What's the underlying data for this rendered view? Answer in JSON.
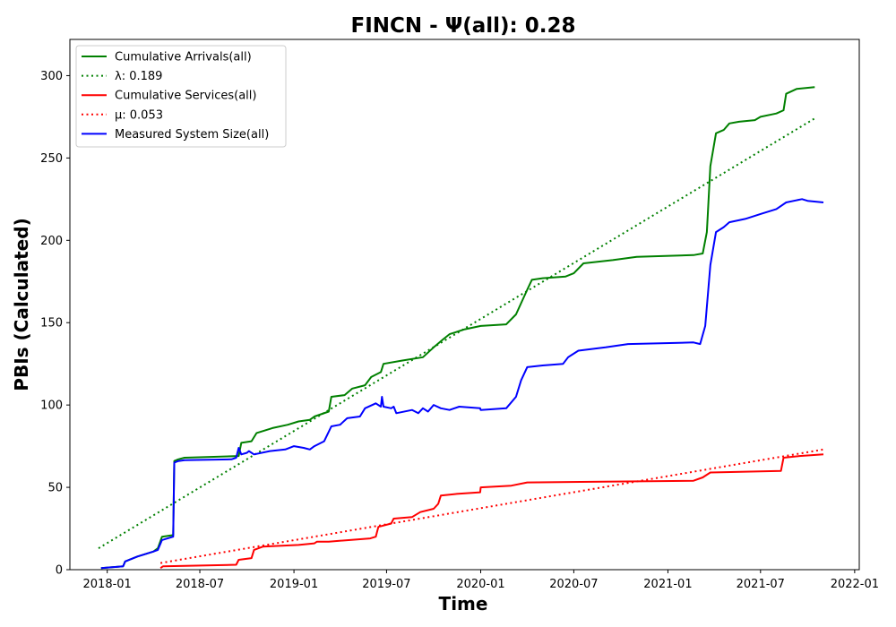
{
  "chart_data": {
    "type": "line",
    "title": "FINCN -  Ψ(all): 0.28",
    "xlabel": "Time",
    "ylabel": "PBIs (Calculated)",
    "x_type": "date",
    "xlim": [
      "2017-10-20",
      "2022-01-10"
    ],
    "ylim": [
      0,
      322
    ],
    "x_ticks": [
      "2018-01",
      "2018-07",
      "2019-01",
      "2019-07",
      "2020-01",
      "2020-07",
      "2021-01",
      "2021-07",
      "2022-01"
    ],
    "y_ticks": [
      0,
      50,
      100,
      150,
      200,
      250,
      300
    ],
    "grid": false,
    "legend_position": "upper left",
    "series": [
      {
        "name": "Cumulative Arrivals(all)",
        "style": "solid",
        "color": "#008000",
        "points": [
          [
            "2017-12-20",
            1
          ],
          [
            "2018-02-01",
            2
          ],
          [
            "2018-02-05",
            5
          ],
          [
            "2018-03-01",
            8
          ],
          [
            "2018-04-01",
            11
          ],
          [
            "2018-04-10",
            13
          ],
          [
            "2018-04-18",
            20
          ],
          [
            "2018-05-10",
            21
          ],
          [
            "2018-05-12",
            66
          ],
          [
            "2018-05-20",
            67
          ],
          [
            "2018-06-01",
            68
          ],
          [
            "2018-09-15",
            69
          ],
          [
            "2018-09-20",
            77
          ],
          [
            "2018-10-10",
            78
          ],
          [
            "2018-10-20",
            83
          ],
          [
            "2018-11-20",
            86
          ],
          [
            "2018-12-20",
            88
          ],
          [
            "2019-01-10",
            90
          ],
          [
            "2019-02-01",
            91
          ],
          [
            "2019-02-10",
            93
          ],
          [
            "2019-03-10",
            96
          ],
          [
            "2019-03-15",
            105
          ],
          [
            "2019-04-10",
            106
          ],
          [
            "2019-04-25",
            110
          ],
          [
            "2019-05-20",
            112
          ],
          [
            "2019-06-01",
            117
          ],
          [
            "2019-06-20",
            120
          ],
          [
            "2019-06-25",
            125
          ],
          [
            "2019-08-01",
            127
          ],
          [
            "2019-09-10",
            129
          ],
          [
            "2019-10-01",
            135
          ],
          [
            "2019-10-20",
            140
          ],
          [
            "2019-11-01",
            143
          ],
          [
            "2019-12-01",
            146
          ],
          [
            "2020-01-01",
            148
          ],
          [
            "2020-02-20",
            149
          ],
          [
            "2020-03-10",
            155
          ],
          [
            "2020-04-01",
            170
          ],
          [
            "2020-04-10",
            176
          ],
          [
            "2020-05-01",
            177
          ],
          [
            "2020-06-15",
            178
          ],
          [
            "2020-07-01",
            180
          ],
          [
            "2020-07-20",
            186
          ],
          [
            "2020-09-15",
            188
          ],
          [
            "2020-11-01",
            190
          ],
          [
            "2021-02-20",
            191
          ],
          [
            "2021-03-10",
            192
          ],
          [
            "2021-03-18",
            205
          ],
          [
            "2021-03-25",
            245
          ],
          [
            "2021-04-05",
            265
          ],
          [
            "2021-04-20",
            267
          ],
          [
            "2021-05-01",
            271
          ],
          [
            "2021-05-20",
            272
          ],
          [
            "2021-06-20",
            273
          ],
          [
            "2021-07-01",
            275
          ],
          [
            "2021-08-01",
            277
          ],
          [
            "2021-08-15",
            279
          ],
          [
            "2021-08-20",
            289
          ],
          [
            "2021-09-10",
            292
          ],
          [
            "2021-10-15",
            293
          ]
        ]
      },
      {
        "name": "λ: 0.189",
        "style": "dotted",
        "color": "#008000",
        "points": [
          [
            "2017-12-15",
            13
          ],
          [
            "2021-10-15",
            274
          ]
        ]
      },
      {
        "name": "Cumulative Services(all)",
        "style": "solid",
        "color": "#ff0000",
        "points": [
          [
            "2018-04-15",
            1
          ],
          [
            "2018-04-20",
            2
          ],
          [
            "2018-09-10",
            3
          ],
          [
            "2018-09-15",
            6
          ],
          [
            "2018-10-10",
            7
          ],
          [
            "2018-10-15",
            12
          ],
          [
            "2018-11-01",
            14
          ],
          [
            "2019-01-10",
            15
          ],
          [
            "2019-02-10",
            16
          ],
          [
            "2019-02-15",
            17
          ],
          [
            "2019-03-10",
            17
          ],
          [
            "2019-05-30",
            19
          ],
          [
            "2019-06-10",
            20
          ],
          [
            "2019-06-15",
            26
          ],
          [
            "2019-07-10",
            28
          ],
          [
            "2019-07-15",
            31
          ],
          [
            "2019-08-20",
            32
          ],
          [
            "2019-09-05",
            35
          ],
          [
            "2019-10-01",
            37
          ],
          [
            "2019-10-10",
            40
          ],
          [
            "2019-10-15",
            45
          ],
          [
            "2019-11-15",
            46
          ],
          [
            "2019-12-31",
            47
          ],
          [
            "2020-01-01",
            50
          ],
          [
            "2020-03-01",
            51
          ],
          [
            "2020-04-01",
            53
          ],
          [
            "2021-02-20",
            54
          ],
          [
            "2021-03-10",
            56
          ],
          [
            "2021-03-25",
            59
          ],
          [
            "2021-08-10",
            60
          ],
          [
            "2021-08-15",
            68
          ],
          [
            "2021-09-15",
            69
          ],
          [
            "2021-11-01",
            70
          ]
        ]
      },
      {
        "name": "μ: 0.053",
        "style": "dotted",
        "color": "#ff0000",
        "points": [
          [
            "2018-04-15",
            4
          ],
          [
            "2021-11-01",
            73
          ]
        ]
      },
      {
        "name": "Measured System Size(all)",
        "style": "solid",
        "color": "#0000ff",
        "points": [
          [
            "2017-12-20",
            1
          ],
          [
            "2018-02-01",
            2
          ],
          [
            "2018-02-05",
            5
          ],
          [
            "2018-03-01",
            8
          ],
          [
            "2018-04-01",
            11
          ],
          [
            "2018-04-10",
            12
          ],
          [
            "2018-04-18",
            18
          ],
          [
            "2018-05-10",
            20
          ],
          [
            "2018-05-12",
            65
          ],
          [
            "2018-05-20",
            66
          ],
          [
            "2018-06-01",
            66.5
          ],
          [
            "2018-09-01",
            67
          ],
          [
            "2018-09-10",
            68
          ],
          [
            "2018-09-15",
            74
          ],
          [
            "2018-09-20",
            70
          ],
          [
            "2018-10-01",
            71
          ],
          [
            "2018-10-05",
            72
          ],
          [
            "2018-10-15",
            70
          ],
          [
            "2018-11-15",
            72
          ],
          [
            "2018-12-15",
            73
          ],
          [
            "2019-01-01",
            75
          ],
          [
            "2019-01-20",
            74
          ],
          [
            "2019-02-01",
            73
          ],
          [
            "2019-02-10",
            75
          ],
          [
            "2019-03-01",
            78
          ],
          [
            "2019-03-15",
            87
          ],
          [
            "2019-04-01",
            88
          ],
          [
            "2019-04-15",
            92
          ],
          [
            "2019-05-10",
            93
          ],
          [
            "2019-05-20",
            98
          ],
          [
            "2019-06-10",
            101
          ],
          [
            "2019-06-20",
            99
          ],
          [
            "2019-06-22",
            105
          ],
          [
            "2019-06-25",
            99
          ],
          [
            "2019-07-10",
            98
          ],
          [
            "2019-07-15",
            99
          ],
          [
            "2019-07-20",
            95
          ],
          [
            "2019-08-20",
            97
          ],
          [
            "2019-09-01",
            95
          ],
          [
            "2019-09-10",
            98
          ],
          [
            "2019-09-20",
            96
          ],
          [
            "2019-10-01",
            100
          ],
          [
            "2019-10-15",
            98
          ],
          [
            "2019-11-01",
            97
          ],
          [
            "2019-11-20",
            99
          ],
          [
            "2019-12-31",
            98
          ],
          [
            "2020-01-01",
            97
          ],
          [
            "2020-02-20",
            98
          ],
          [
            "2020-03-10",
            105
          ],
          [
            "2020-03-20",
            115
          ],
          [
            "2020-04-01",
            123
          ],
          [
            "2020-05-01",
            124
          ],
          [
            "2020-06-10",
            125
          ],
          [
            "2020-06-20",
            129
          ],
          [
            "2020-07-10",
            133
          ],
          [
            "2020-09-01",
            135
          ],
          [
            "2020-10-15",
            137
          ],
          [
            "2021-02-20",
            138
          ],
          [
            "2021-03-05",
            137
          ],
          [
            "2021-03-15",
            148
          ],
          [
            "2021-03-25",
            185
          ],
          [
            "2021-04-05",
            205
          ],
          [
            "2021-04-20",
            208
          ],
          [
            "2021-05-01",
            211
          ],
          [
            "2021-06-01",
            213
          ],
          [
            "2021-07-01",
            216
          ],
          [
            "2021-08-01",
            219
          ],
          [
            "2021-08-20",
            223
          ],
          [
            "2021-09-20",
            225
          ],
          [
            "2021-10-01",
            224
          ],
          [
            "2021-11-01",
            223
          ]
        ]
      }
    ]
  }
}
